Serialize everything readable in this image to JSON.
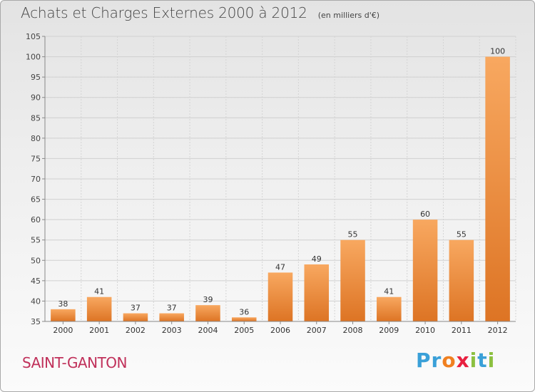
{
  "chart_data": {
    "type": "bar",
    "title": "Achats et Charges Externes 2000 à 2012",
    "subtitle": "(en milliers d'€)",
    "categories": [
      "2000",
      "2001",
      "2002",
      "2003",
      "2004",
      "2005",
      "2006",
      "2007",
      "2008",
      "2009",
      "2010",
      "2011",
      "2012"
    ],
    "values": [
      38,
      41,
      37,
      37,
      39,
      36,
      47,
      49,
      55,
      41,
      60,
      55,
      100
    ],
    "ylim": [
      35,
      105
    ],
    "yticks": [
      35,
      40,
      45,
      50,
      55,
      60,
      65,
      70,
      75,
      80,
      85,
      90,
      95,
      100,
      105
    ],
    "grid": true,
    "bar_color": "#f0903a",
    "xlabel": "",
    "ylabel": ""
  },
  "place_name": "SAINT-GANTON",
  "logo": {
    "text": "Proxiti",
    "letters": [
      "P",
      "r",
      "o",
      "x",
      "i",
      "t",
      "i"
    ]
  },
  "colors": {
    "bar_top": "#f8a860",
    "bar_bottom": "#dd7424",
    "place": "#c0305a",
    "logo_letters": [
      "#3aa0d8",
      "#3aa0d8",
      "#f08020",
      "#e82040",
      "#8cc040",
      "#3aa0d8",
      "#8cc040"
    ]
  }
}
